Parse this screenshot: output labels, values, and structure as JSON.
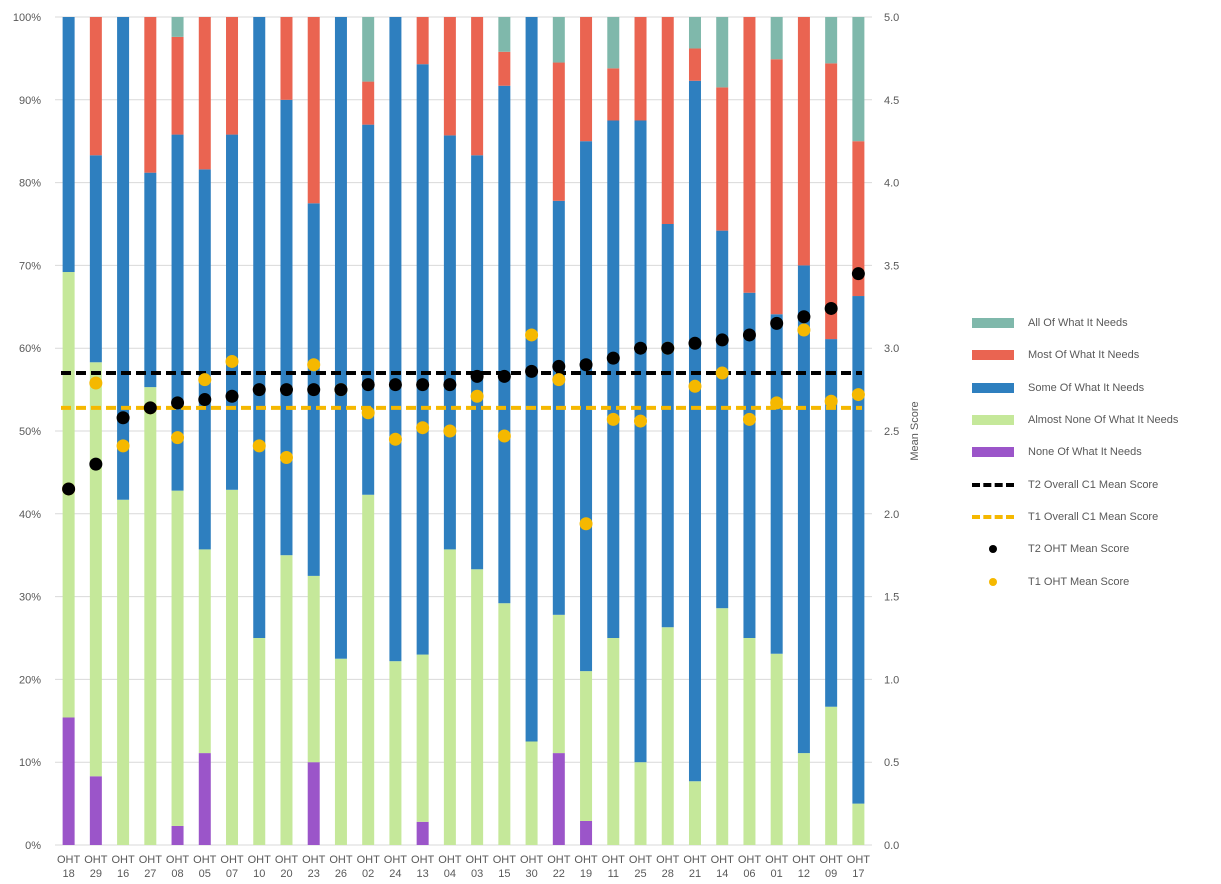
{
  "chart_data": {
    "type": "bar",
    "stacked": true,
    "categories": [
      "OHT 18",
      "OHT 29",
      "OHT 16",
      "OHT 27",
      "OHT 08",
      "OHT 05",
      "OHT 07",
      "OHT 10",
      "OHT 20",
      "OHT 23",
      "OHT 26",
      "OHT 02",
      "OHT 24",
      "OHT 13",
      "OHT 04",
      "OHT 03",
      "OHT 15",
      "OHT 30",
      "OHT 22",
      "OHT 19",
      "OHT 11",
      "OHT 25",
      "OHT 28",
      "OHT 21",
      "OHT 14",
      "OHT 06",
      "OHT 01",
      "OHT 12",
      "OHT 09",
      "OHT 17"
    ],
    "series": [
      {
        "name": "None Of What It Needs",
        "color": "#9b55c9",
        "values": [
          15.4,
          8.3,
          0,
          0,
          2.3,
          11.1,
          0,
          0,
          0,
          10.0,
          0,
          0,
          0,
          2.8,
          0,
          0,
          0,
          0,
          11.1,
          2.9,
          0,
          0,
          0,
          0,
          0,
          0,
          0,
          0,
          0,
          0
        ]
      },
      {
        "name": "Almost None Of What It Needs",
        "color": "#c5e89a",
        "values": [
          53.8,
          50.0,
          41.7,
          55.3,
          40.5,
          24.6,
          42.9,
          25.0,
          35.0,
          22.5,
          22.5,
          42.3,
          22.2,
          20.2,
          35.7,
          33.3,
          29.2,
          12.5,
          16.7,
          18.1,
          25.0,
          10.0,
          26.3,
          7.7,
          28.6,
          25.0,
          23.1,
          11.1,
          16.7,
          5.0
        ]
      },
      {
        "name": "Some Of What It Needs",
        "color": "#2e7fbf",
        "values": [
          30.8,
          25.0,
          58.3,
          25.9,
          43.0,
          45.9,
          42.9,
          75.0,
          55.0,
          45.0,
          77.5,
          44.7,
          77.8,
          71.3,
          50.0,
          50.0,
          62.5,
          87.5,
          50.0,
          64.0,
          62.5,
          77.5,
          48.7,
          84.6,
          45.6,
          41.7,
          41.0,
          58.9,
          44.4,
          61.3
        ]
      },
      {
        "name": "Most Of What It Needs",
        "color": "#ea6451",
        "values": [
          0,
          16.7,
          0,
          18.8,
          11.8,
          18.4,
          14.2,
          0,
          10.0,
          22.5,
          0,
          5.2,
          0,
          5.7,
          14.3,
          16.7,
          4.1,
          0,
          16.7,
          15.0,
          6.3,
          12.5,
          25.0,
          3.9,
          17.3,
          33.3,
          30.8,
          30.0,
          33.3,
          18.7
        ]
      },
      {
        "name": "All Of What It Needs",
        "color": "#7fb8ab",
        "values": [
          0,
          0,
          0,
          0,
          2.4,
          0,
          0,
          0,
          0,
          0,
          0,
          7.8,
          0,
          0,
          0,
          0,
          4.2,
          0,
          5.5,
          0,
          6.2,
          0,
          0,
          3.8,
          8.5,
          0,
          5.1,
          0,
          5.6,
          15.0
        ]
      }
    ],
    "line_series": [
      {
        "name": "T2 Overall C1 Mean Score",
        "color": "#000000",
        "value": 2.85,
        "style": "dashed"
      },
      {
        "name": "T1 Overall C1 Mean Score",
        "color": "#f5b800",
        "value": 2.64,
        "style": "dashed"
      }
    ],
    "point_series": [
      {
        "name": "T2 OHT Mean Score",
        "color": "#000000",
        "values": [
          2.15,
          2.3,
          2.58,
          2.64,
          2.67,
          2.69,
          2.71,
          2.75,
          2.75,
          2.75,
          2.75,
          2.78,
          2.78,
          2.78,
          2.78,
          2.83,
          2.83,
          2.86,
          2.89,
          2.9,
          2.94,
          3.0,
          3.0,
          3.03,
          3.05,
          3.08,
          3.15,
          3.19,
          3.24,
          3.45
        ]
      },
      {
        "name": "T1 OHT Mean Score",
        "color": "#f5b800",
        "values": [
          2.15,
          2.79,
          2.41,
          2.64,
          2.46,
          2.81,
          2.92,
          2.41,
          2.34,
          2.9,
          2.75,
          2.61,
          2.45,
          2.52,
          2.5,
          2.71,
          2.47,
          3.08,
          2.81,
          1.94,
          2.57,
          2.56,
          3.0,
          2.77,
          2.85,
          2.57,
          2.67,
          3.11,
          2.68,
          2.72
        ]
      }
    ],
    "y_left": {
      "ticks": [
        "0%",
        "10%",
        "20%",
        "30%",
        "40%",
        "50%",
        "60%",
        "70%",
        "80%",
        "90%",
        "100%"
      ],
      "ylim": [
        0,
        100
      ]
    },
    "y_right": {
      "label": "Mean Score",
      "ticks": [
        "0.0",
        "0.5",
        "1.0",
        "1.5",
        "2.0",
        "2.5",
        "3.0",
        "3.5",
        "4.0",
        "4.5",
        "5.0"
      ],
      "ylim": [
        0,
        5
      ]
    },
    "grid": true,
    "legend_position": "right"
  },
  "legend": [
    {
      "label": "All Of What It Needs",
      "kind": "rect",
      "color": "#7fb8ab"
    },
    {
      "label": "Most Of What It Needs",
      "kind": "rect",
      "color": "#ea6451"
    },
    {
      "label": "Some Of What It Needs",
      "kind": "rect",
      "color": "#2e7fbf"
    },
    {
      "label": "Almost None Of What It Needs",
      "kind": "rect",
      "color": "#c5e89a"
    },
    {
      "label": "None Of What It Needs",
      "kind": "rect",
      "color": "#9b55c9"
    },
    {
      "label": "T2 Overall C1 Mean Score",
      "kind": "dash",
      "color": "#000000"
    },
    {
      "label": "T1 Overall C1 Mean Score",
      "kind": "dash",
      "color": "#f5b800"
    },
    {
      "label": "T2 OHT Mean Score",
      "kind": "dot",
      "color": "#000000"
    },
    {
      "label": "T1 OHT Mean Score",
      "kind": "dot",
      "color": "#f5b800"
    }
  ]
}
